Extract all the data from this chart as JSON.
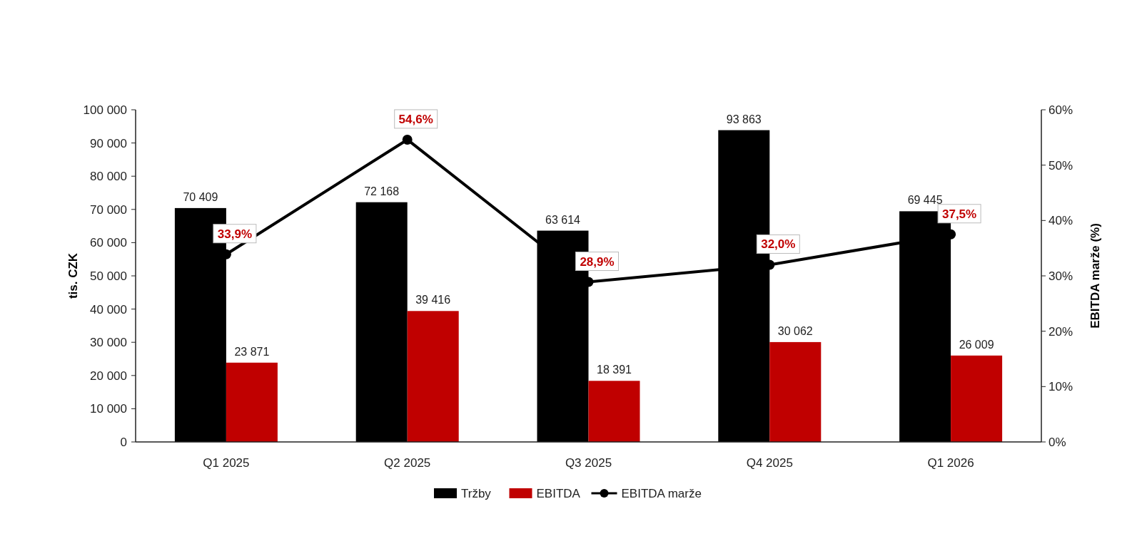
{
  "chart_data": {
    "type": "bar",
    "categories": [
      "Q1 2025",
      "Q2 2025",
      "Q3 2025",
      "Q4 2025",
      "Q1 2026"
    ],
    "ylabel": "tis. CZK",
    "y2label": "EBITDA marže (%)",
    "ylim": [
      0,
      100000
    ],
    "yticks": [
      0,
      {
        "value": 10000,
        "label": "10 000"
      },
      {
        "value": 20000,
        "label": "20 000"
      },
      {
        "value": 30000,
        "label": "30 000"
      },
      {
        "value": 40000,
        "label": "40 000"
      },
      {
        "value": 50000,
        "label": "50 000"
      },
      {
        "value": 60000,
        "label": "60 000"
      },
      {
        "value": 70000,
        "label": "70 000"
      },
      {
        "value": 80000,
        "label": "80 000"
      },
      {
        "value": 90000,
        "label": "90 000"
      },
      {
        "value": 100000,
        "label": "100 000"
      }
    ],
    "y2lim": [
      0,
      60
    ],
    "y2ticks": [
      {
        "value": 0,
        "label": "0%"
      },
      {
        "value": 10,
        "label": "10%"
      },
      {
        "value": 20,
        "label": "20%"
      },
      {
        "value": 30,
        "label": "30%"
      },
      {
        "value": 40,
        "label": "40%"
      },
      {
        "value": 50,
        "label": "50%"
      },
      {
        "value": 60,
        "label": "60%"
      }
    ],
    "series": [
      {
        "name": "Tržby",
        "color": "#000000",
        "values": [
          70409,
          72168,
          63614,
          93863,
          69445
        ],
        "value_labels": [
          "70 409",
          "72 168",
          "63 614",
          "93 863",
          "69 445"
        ]
      },
      {
        "name": "EBITDA",
        "color": "#c00000",
        "values": [
          23871,
          39416,
          18391,
          30062,
          26009
        ],
        "value_labels": [
          "23 871",
          "39 416",
          "18 391",
          "30 062",
          "26 009"
        ]
      },
      {
        "name": "EBITDA marže",
        "type": "line",
        "axis": "y2",
        "color": "#000000",
        "marker": "circle",
        "values": [
          33.9,
          54.6,
          28.9,
          32.0,
          37.5
        ],
        "value_labels": [
          "33,9%",
          "54,6%",
          "28,9%",
          "32,0%",
          "37,5%"
        ]
      }
    ],
    "legend": "bottom",
    "grid": false
  }
}
